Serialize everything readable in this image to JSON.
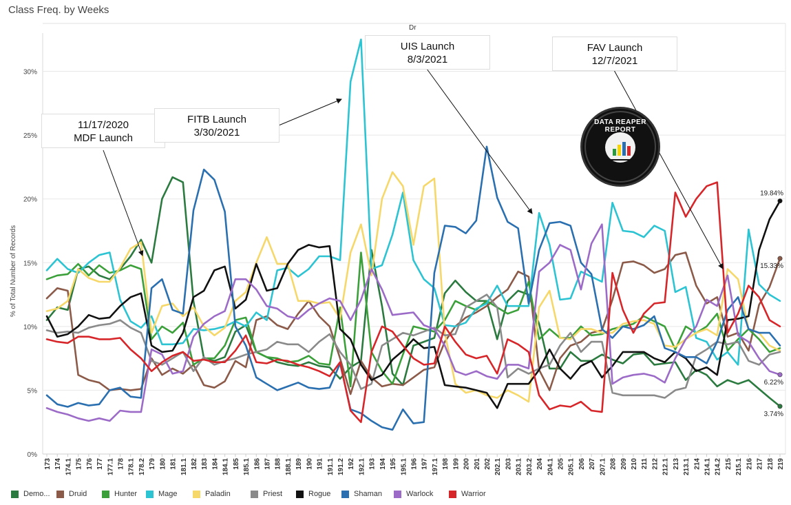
{
  "title": "Class Freq. by Weeks",
  "subtitle": "Dr",
  "logo_text": "DATA REAPER REPORT",
  "annotations": [
    {
      "text_line1": "11/17/2020",
      "text_line2": "MDF Launch"
    },
    {
      "text_line1": "FITB Launch",
      "text_line2": "3/30/2021"
    },
    {
      "text_line1": "UIS Launch",
      "text_line2": "8/3/2021"
    },
    {
      "text_line1": "FAV Launch",
      "text_line2": "12/7/2021"
    }
  ],
  "end_labels": [
    "19.84%",
    "15.33%",
    "6.22%",
    "3.74%"
  ],
  "chart_data": {
    "type": "line",
    "title": "Class Freq. by Weeks",
    "xlabel": "",
    "ylabel": "% of Total Number of Records",
    "ylim": [
      0,
      33
    ],
    "yticks": [
      "0%",
      "5%",
      "10%",
      "15%",
      "20%",
      "25%",
      "30%"
    ],
    "grid": true,
    "legend_position": "bottom",
    "categories": [
      "173",
      "174",
      "174.1",
      "175",
      "176",
      "177",
      "177.1",
      "178",
      "178.1",
      "178.2",
      "179",
      "180",
      "181",
      "181.1",
      "182",
      "183",
      "184",
      "184.1",
      "185",
      "185.1",
      "186",
      "187",
      "188",
      "188.1",
      "189",
      "190",
      "191",
      "191.1",
      "191.2",
      "192",
      "192.1",
      "193",
      "194",
      "195",
      "195.1",
      "196",
      "197",
      "197.1",
      "198",
      "199",
      "200",
      "201",
      "202",
      "202.1",
      "203",
      "203.1",
      "203.2",
      "204",
      "204.1",
      "205",
      "205.1",
      "206",
      "207",
      "207.1",
      "208",
      "209",
      "210",
      "211",
      "212",
      "212.1",
      "213",
      "213.1",
      "214",
      "214.1",
      "214.2",
      "215",
      "215.1",
      "216",
      "217",
      "218",
      "219"
    ],
    "series": [
      {
        "name": "Demo...",
        "color": "#2b7a3f",
        "values": [
          10.5,
          11.5,
          11.3,
          14.5,
          14.7,
          14.0,
          13.7,
          14.5,
          15.5,
          16.8,
          15.0,
          20.0,
          21.7,
          21.3,
          12.0,
          7.5,
          7.3,
          7.6,
          9.6,
          10.1,
          8.0,
          7.6,
          7.2,
          7.0,
          6.9,
          7.2,
          6.9,
          6.8,
          5.9,
          6.8,
          7.3,
          16.0,
          11.6,
          6.3,
          5.4,
          8.5,
          8.8,
          9.1,
          12.6,
          13.6,
          12.7,
          12.0,
          12.0,
          9.0,
          12.0,
          12.8,
          12.5,
          10.2,
          6.7,
          6.7,
          8.0,
          7.3,
          7.3,
          7.8,
          7.4,
          7.1,
          7.8,
          7.9,
          7.0,
          7.1,
          7.2,
          5.8,
          6.6,
          6.2,
          5.3,
          5.8,
          5.5,
          5.8,
          5.1,
          4.4,
          3.74
        ]
      },
      {
        "name": "Druid",
        "color": "#8b5a48",
        "values": [
          12.2,
          13.0,
          12.8,
          6.2,
          5.8,
          5.6,
          5.0,
          5.1,
          5.0,
          5.1,
          7.5,
          6.2,
          6.7,
          6.3,
          7.0,
          5.4,
          5.2,
          5.7,
          7.3,
          6.8,
          10.5,
          10.8,
          10.1,
          9.8,
          11.0,
          12.0,
          10.8,
          10.0,
          7.5,
          4.7,
          7.3,
          6.0,
          5.3,
          5.5,
          5.4,
          6.0,
          6.6,
          6.8,
          8.8,
          10.0,
          10.7,
          11.1,
          11.6,
          12.3,
          12.9,
          14.3,
          13.9,
          6.6,
          5.0,
          7.5,
          8.5,
          8.8,
          9.5,
          9.7,
          12.1,
          15.0,
          15.1,
          14.8,
          14.2,
          14.5,
          15.6,
          15.8,
          13.2,
          11.8,
          12.3,
          9.2,
          9.5,
          8.1,
          11.7,
          13.1,
          15.33
        ]
      },
      {
        "name": "Hunter",
        "color": "#3ca03a",
        "values": [
          13.7,
          14.0,
          14.1,
          14.9,
          14.0,
          14.8,
          14.2,
          14.4,
          14.8,
          14.5,
          9.0,
          10.0,
          9.5,
          10.3,
          7.0,
          7.5,
          7.5,
          8.5,
          10.5,
          10.7,
          8.0,
          7.6,
          7.5,
          7.2,
          7.3,
          7.7,
          7.1,
          7.0,
          11.5,
          5.3,
          15.8,
          8.0,
          6.5,
          5.5,
          7.8,
          10.0,
          9.8,
          9.6,
          10.5,
          12.0,
          11.6,
          11.3,
          12.0,
          11.5,
          11.0,
          11.3,
          13.5,
          9.0,
          9.8,
          9.1,
          9.1,
          10.0,
          9.3,
          9.4,
          9.8,
          10.0,
          10.2,
          10.8,
          10.4,
          10.0,
          8.2,
          10.0,
          9.5,
          10.0,
          11.0,
          8.1,
          9.0,
          9.8,
          9.0,
          8.0,
          8.3
        ]
      },
      {
        "name": "Mage",
        "color": "#2cc3d2",
        "values": [
          14.4,
          15.3,
          14.5,
          14.2,
          15.0,
          15.6,
          15.8,
          12.1,
          10.4,
          9.9,
          10.8,
          8.6,
          8.6,
          8.7,
          9.8,
          9.7,
          9.8,
          10.0,
          10.4,
          10.0,
          11.1,
          10.5,
          14.4,
          14.6,
          13.9,
          14.5,
          15.5,
          15.5,
          15.2,
          29.2,
          32.5,
          14.5,
          14.8,
          17.2,
          20.5,
          15.2,
          13.7,
          13.0,
          10.1,
          10.0,
          10.3,
          11.4,
          11.8,
          13.2,
          11.6,
          11.6,
          11.6,
          18.9,
          16.4,
          12.1,
          12.2,
          14.3,
          13.9,
          13.5,
          19.7,
          17.5,
          17.4,
          17.0,
          17.9,
          17.5,
          12.7,
          13.1,
          9.1,
          8.8,
          7.4,
          8.0,
          7.0,
          17.6,
          13.3,
          12.5,
          12.0
        ]
      },
      {
        "name": "Paladin",
        "color": "#f6d86a",
        "values": [
          11.2,
          11.4,
          12.0,
          14.5,
          13.8,
          13.5,
          13.5,
          14.6,
          16.1,
          16.6,
          9.5,
          11.6,
          11.8,
          10.8,
          11.5,
          10.0,
          9.3,
          9.9,
          12.0,
          12.7,
          15.0,
          17.0,
          14.9,
          14.9,
          12.0,
          12.0,
          11.8,
          11.9,
          10.6,
          15.8,
          18.0,
          14.0,
          20.0,
          22.1,
          21.0,
          16.4,
          21.0,
          21.6,
          9.5,
          5.5,
          4.8,
          5.0,
          4.6,
          4.4,
          5.0,
          4.6,
          4.1,
          11.5,
          12.8,
          9.1,
          9.0,
          9.8,
          9.8,
          9.5,
          9.5,
          10.2,
          10.4,
          10.5,
          10.2,
          8.5,
          8.4,
          9.0,
          9.5,
          9.8,
          9.3,
          14.5,
          13.7,
          9.8,
          9.5,
          8.5,
          8.1
        ]
      },
      {
        "name": "Priest",
        "color": "#8a8a8a",
        "values": [
          9.7,
          9.5,
          9.6,
          9.5,
          9.9,
          10.1,
          10.2,
          10.5,
          9.9,
          9.5,
          7.3,
          7.0,
          7.5,
          8.0,
          6.5,
          7.6,
          7.0,
          7.3,
          7.5,
          7.8,
          8.0,
          8.2,
          8.8,
          8.6,
          8.6,
          8.0,
          8.8,
          9.4,
          8.0,
          7.0,
          5.1,
          5.5,
          8.5,
          9.0,
          9.5,
          9.3,
          9.6,
          9.9,
          9.3,
          9.4,
          11.5,
          12.0,
          12.5,
          11.5,
          6.0,
          6.7,
          6.3,
          6.7,
          7.0,
          8.5,
          9.5,
          8.0,
          8.8,
          8.8,
          4.8,
          4.6,
          4.6,
          4.6,
          4.6,
          4.4,
          5.0,
          5.2,
          7.7,
          8.2,
          8.8,
          8.6,
          8.8,
          7.3,
          7.0,
          7.8,
          8.0
        ]
      },
      {
        "name": "Rogue",
        "color": "#111111",
        "values": [
          10.8,
          9.2,
          9.4,
          10.0,
          10.9,
          10.6,
          10.7,
          11.6,
          12.3,
          12.6,
          8.5,
          8.0,
          8.1,
          9.5,
          12.3,
          12.8,
          14.4,
          14.7,
          11.4,
          12.1,
          14.9,
          12.8,
          13.0,
          14.9,
          16.0,
          16.4,
          16.2,
          16.3,
          9.8,
          9.0,
          7.0,
          5.8,
          6.2,
          7.4,
          8.1,
          9.0,
          8.3,
          8.4,
          5.4,
          5.3,
          5.2,
          5.0,
          4.8,
          3.6,
          5.5,
          5.5,
          5.5,
          6.6,
          8.2,
          6.7,
          5.9,
          6.9,
          7.3,
          6.0,
          6.9,
          8.0,
          8.0,
          8.0,
          7.5,
          7.2,
          8.0,
          7.5,
          6.5,
          6.8,
          6.2,
          10.5,
          10.6,
          10.8,
          16.0,
          18.4,
          19.84
        ]
      },
      {
        "name": "Shaman",
        "color": "#2a6fb0",
        "values": [
          4.6,
          3.9,
          3.7,
          4.0,
          3.8,
          3.9,
          5.0,
          5.2,
          4.5,
          4.4,
          13.0,
          13.7,
          11.3,
          11.0,
          19.1,
          22.3,
          21.5,
          19.0,
          10.0,
          8.5,
          6.0,
          5.5,
          5.0,
          5.3,
          5.6,
          5.2,
          5.1,
          5.2,
          7.1,
          3.5,
          3.2,
          2.6,
          2.1,
          1.9,
          3.5,
          2.4,
          2.5,
          14.2,
          17.9,
          17.8,
          17.3,
          18.3,
          24.1,
          20.1,
          18.2,
          17.7,
          11.8,
          16.0,
          18.1,
          18.2,
          17.9,
          15.0,
          14.1,
          9.8,
          9.1,
          10.0,
          9.8,
          10.1,
          10.8,
          8.3,
          8.0,
          7.6,
          7.6,
          7.1,
          8.8,
          11.3,
          12.3,
          9.8,
          9.5,
          9.5,
          8.5
        ]
      },
      {
        "name": "Warlock",
        "color": "#9b6bc7",
        "values": [
          3.6,
          3.3,
          3.1,
          2.8,
          2.6,
          2.8,
          2.6,
          3.4,
          3.3,
          3.3,
          8.2,
          7.8,
          6.3,
          6.5,
          9.2,
          10.2,
          10.8,
          11.2,
          13.7,
          13.7,
          12.9,
          11.6,
          11.4,
          10.8,
          10.6,
          11.3,
          11.8,
          12.2,
          12.0,
          10.5,
          12.1,
          14.5,
          12.9,
          10.9,
          11.0,
          11.1,
          10.1,
          9.8,
          8.5,
          6.5,
          6.2,
          6.5,
          6.1,
          5.9,
          7.0,
          7.0,
          6.7,
          14.3,
          15.0,
          16.4,
          16.0,
          12.9,
          16.5,
          18.0,
          5.5,
          6.0,
          6.2,
          6.3,
          6.1,
          5.6,
          7.5,
          9.0,
          10.0,
          12.1,
          11.6,
          14.0,
          9.3,
          8.8,
          7.5,
          6.5,
          6.22
        ]
      },
      {
        "name": "Warrior",
        "color": "#d7262a",
        "values": [
          9.0,
          8.8,
          8.7,
          9.2,
          9.2,
          9.0,
          9.0,
          9.1,
          8.2,
          7.5,
          6.5,
          7.2,
          7.7,
          8.0,
          7.3,
          7.4,
          7.2,
          7.2,
          8.1,
          9.3,
          7.2,
          7.1,
          7.4,
          7.3,
          7.0,
          6.8,
          6.5,
          6.1,
          7.2,
          3.4,
          2.5,
          8.0,
          10.0,
          9.6,
          8.5,
          7.5,
          7.0,
          7.1,
          10.0,
          8.8,
          7.8,
          7.5,
          7.7,
          6.3,
          9.0,
          8.6,
          8.0,
          4.6,
          3.5,
          3.8,
          3.7,
          4.1,
          3.4,
          3.3,
          14.2,
          11.3,
          9.5,
          11.0,
          11.8,
          11.9,
          20.5,
          18.6,
          20.0,
          21.0,
          21.3,
          9.5,
          11.0,
          13.2,
          12.3,
          10.5,
          10.0
        ]
      }
    ]
  }
}
